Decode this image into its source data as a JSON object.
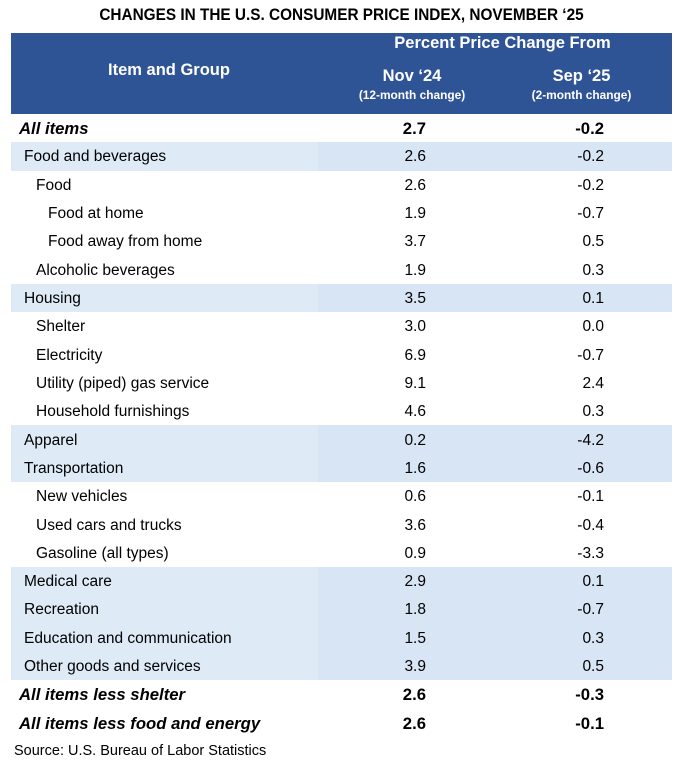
{
  "title": "CHANGES IN THE U.S. CONSUMER PRICE INDEX, NOVEMBER ‘25",
  "source": "Source: U.S. Bureau of Labor Statistics",
  "colors": {
    "header_bg": "#2F5496",
    "header_text": "#FFFFFF",
    "highlight_item_col": "#DEEBF7",
    "highlight_data_col": "#D8E5F5",
    "text": "#000000"
  },
  "chart_data": {
    "type": "table",
    "title": "CHANGES IN THE U.S. CONSUMER PRICE INDEX, NOVEMBER ‘25",
    "column_group_header": "Percent Price Change From",
    "columns": [
      {
        "label": "Item and Group"
      },
      {
        "label": "Nov ‘24",
        "sublabel": "(12-month change)"
      },
      {
        "label": "Sep ‘25",
        "sublabel": "(2-month change)"
      }
    ],
    "rows": [
      {
        "item": "All items",
        "nov24": "2.7",
        "sep25": "-0.2",
        "indent": 0,
        "bold": true,
        "highlight": false
      },
      {
        "item": "Food and beverages",
        "nov24": "2.6",
        "sep25": "-0.2",
        "indent": 1,
        "bold": false,
        "highlight": true
      },
      {
        "item": "Food",
        "nov24": "2.6",
        "sep25": "-0.2",
        "indent": 2,
        "bold": false,
        "highlight": false
      },
      {
        "item": "Food at home",
        "nov24": "1.9",
        "sep25": "-0.7",
        "indent": 3,
        "bold": false,
        "highlight": false
      },
      {
        "item": "Food away from home",
        "nov24": "3.7",
        "sep25": "0.5",
        "indent": 3,
        "bold": false,
        "highlight": false
      },
      {
        "item": "Alcoholic beverages",
        "nov24": "1.9",
        "sep25": "0.3",
        "indent": 2,
        "bold": false,
        "highlight": false
      },
      {
        "item": "Housing",
        "nov24": "3.5",
        "sep25": "0.1",
        "indent": 1,
        "bold": false,
        "highlight": true
      },
      {
        "item": "Shelter",
        "nov24": "3.0",
        "sep25": "0.0",
        "indent": 2,
        "bold": false,
        "highlight": false
      },
      {
        "item": "Electricity",
        "nov24": "6.9",
        "sep25": "-0.7",
        "indent": 2,
        "bold": false,
        "highlight": false
      },
      {
        "item": "Utility (piped) gas service",
        "nov24": "9.1",
        "sep25": "2.4",
        "indent": 2,
        "bold": false,
        "highlight": false
      },
      {
        "item": "Household furnishings",
        "nov24": "4.6",
        "sep25": "0.3",
        "indent": 2,
        "bold": false,
        "highlight": false
      },
      {
        "item": "Apparel",
        "nov24": "0.2",
        "sep25": "-4.2",
        "indent": 1,
        "bold": false,
        "highlight": true
      },
      {
        "item": "Transportation",
        "nov24": "1.6",
        "sep25": "-0.6",
        "indent": 1,
        "bold": false,
        "highlight": true
      },
      {
        "item": "New vehicles",
        "nov24": "0.6",
        "sep25": "-0.1",
        "indent": 2,
        "bold": false,
        "highlight": false
      },
      {
        "item": "Used cars and trucks",
        "nov24": "3.6",
        "sep25": "-0.4",
        "indent": 2,
        "bold": false,
        "highlight": false
      },
      {
        "item": "Gasoline (all types)",
        "nov24": "0.9",
        "sep25": "-3.3",
        "indent": 2,
        "bold": false,
        "highlight": false
      },
      {
        "item": "Medical care",
        "nov24": "2.9",
        "sep25": "0.1",
        "indent": 1,
        "bold": false,
        "highlight": true
      },
      {
        "item": "Recreation",
        "nov24": "1.8",
        "sep25": "-0.7",
        "indent": 1,
        "bold": false,
        "highlight": true
      },
      {
        "item": "Education and communication",
        "nov24": "1.5",
        "sep25": "0.3",
        "indent": 1,
        "bold": false,
        "highlight": true
      },
      {
        "item": "Other goods and services",
        "nov24": "3.9",
        "sep25": "0.5",
        "indent": 1,
        "bold": false,
        "highlight": true
      },
      {
        "item": "All items less shelter",
        "nov24": "2.6",
        "sep25": "-0.3",
        "indent": 0,
        "bold": true,
        "highlight": false
      },
      {
        "item": "All items less food and energy",
        "nov24": "2.6",
        "sep25": "-0.1",
        "indent": 0,
        "bold": true,
        "highlight": false
      }
    ]
  }
}
